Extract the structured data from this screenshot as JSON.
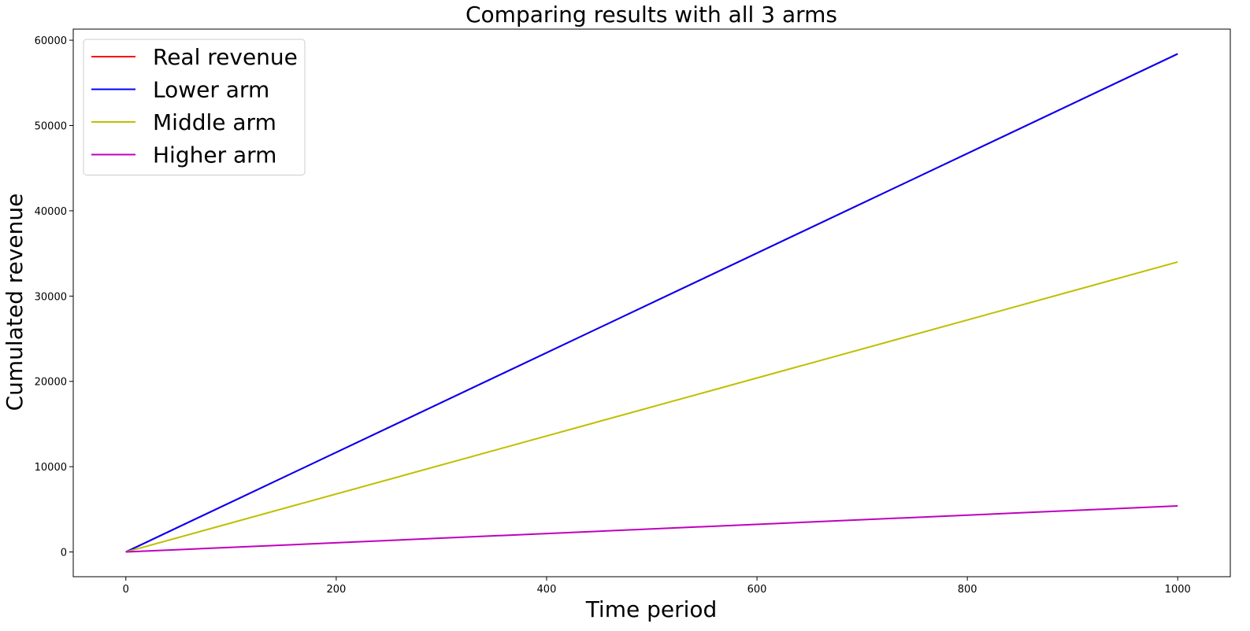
{
  "chart_data": {
    "type": "line",
    "title": "Comparing results with all 3 arms",
    "xlabel": "Time period",
    "ylabel": "Cumulated revenue",
    "xlim": [
      -50,
      1050
    ],
    "ylim": [
      -2900,
      61300
    ],
    "xticks": [
      0,
      200,
      400,
      600,
      800,
      1000
    ],
    "yticks": [
      0,
      10000,
      20000,
      30000,
      40000,
      50000,
      60000
    ],
    "grid": false,
    "legend_position": "top-left",
    "series": [
      {
        "name": "Real revenue",
        "color": "#ff0000",
        "x": [
          0,
          1000
        ],
        "y": [
          0,
          58400
        ]
      },
      {
        "name": "Lower arm",
        "color": "#0000ff",
        "x": [
          0,
          1000
        ],
        "y": [
          0,
          58400
        ]
      },
      {
        "name": "Middle arm",
        "color": "#bfbf00",
        "x": [
          0,
          1000
        ],
        "y": [
          0,
          34000
        ]
      },
      {
        "name": "Higher arm",
        "color": "#bf00bf",
        "x": [
          0,
          1000
        ],
        "y": [
          0,
          5400
        ]
      }
    ]
  }
}
